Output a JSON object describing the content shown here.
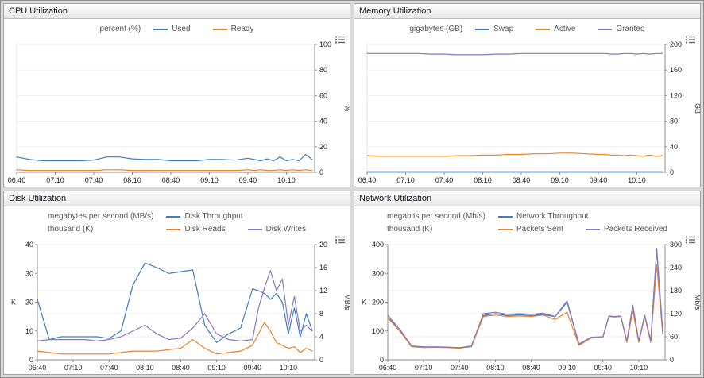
{
  "accent_colors": {
    "blue": "#3f7cc0",
    "orange": "#e8842c",
    "purple": "#8a76c1"
  },
  "chart_data": [
    {
      "type": "line",
      "title": "CPU Utilization",
      "legend": [
        {
          "unit": "percent (%)",
          "entries": [
            {
              "name": "Used",
              "color": "#3f7cc0"
            },
            {
              "name": "Ready",
              "color": "#e8842c"
            }
          ]
        }
      ],
      "x_range": [
        0,
        232
      ],
      "x_tick_minutes": [
        0,
        30,
        60,
        90,
        120,
        150,
        180,
        210
      ],
      "x_tick_labels": [
        "06:40",
        "07:10",
        "07:40",
        "08:10",
        "08:40",
        "09:10",
        "09:40",
        "10:10"
      ],
      "right_axis": {
        "label": "%",
        "min": 0,
        "max": 100,
        "ticks": [
          0,
          20,
          40,
          60,
          80,
          100
        ]
      },
      "left_axis": null,
      "x": [
        0,
        10,
        20,
        30,
        40,
        50,
        60,
        70,
        80,
        90,
        100,
        110,
        120,
        130,
        140,
        150,
        160,
        170,
        180,
        185,
        190,
        195,
        200,
        205,
        210,
        215,
        220,
        225,
        230
      ],
      "series": [
        {
          "name": "Used",
          "color": "#3f7cc0",
          "axis": "right",
          "values": [
            12,
            10,
            9,
            9,
            9,
            9,
            9.5,
            12,
            12,
            10.5,
            10,
            10,
            9,
            9,
            9,
            10,
            10,
            9.5,
            11,
            10,
            9,
            10.5,
            9,
            12,
            9,
            10,
            9,
            14,
            10
          ]
        },
        {
          "name": "Ready",
          "color": "#e8842c",
          "axis": "right",
          "values": [
            2,
            1.5,
            1.5,
            1.5,
            1.5,
            1.5,
            1.5,
            2,
            2,
            1.5,
            1.5,
            1.5,
            1.5,
            1.5,
            1.5,
            1.5,
            1.5,
            1.5,
            2,
            1.5,
            2,
            1.5,
            1.5,
            2,
            1.5,
            2,
            1.5,
            2,
            1.5
          ]
        }
      ]
    },
    {
      "type": "line",
      "title": "Memory Utilization",
      "legend": [
        {
          "unit": "gigabytes (GB)",
          "entries": [
            {
              "name": "Swap",
              "color": "#3f7cc0"
            },
            {
              "name": "Active",
              "color": "#e8842c"
            },
            {
              "name": "Granted",
              "color": "#8a76c1"
            }
          ]
        }
      ],
      "x_range": [
        0,
        232
      ],
      "x_tick_minutes": [
        0,
        30,
        60,
        90,
        120,
        150,
        180,
        210
      ],
      "x_tick_labels": [
        "06:40",
        "07:10",
        "07:40",
        "08:10",
        "08:40",
        "09:10",
        "09:40",
        "10:10"
      ],
      "right_axis": {
        "label": "GB",
        "min": 0,
        "max": 200,
        "ticks": [
          0,
          40,
          80,
          120,
          160,
          200
        ]
      },
      "left_axis": null,
      "x": [
        0,
        10,
        20,
        30,
        40,
        50,
        60,
        70,
        80,
        90,
        100,
        110,
        120,
        130,
        140,
        150,
        160,
        170,
        180,
        185,
        190,
        195,
        200,
        205,
        210,
        215,
        220,
        225,
        230
      ],
      "series": [
        {
          "name": "Swap",
          "color": "#3f7cc0",
          "axis": "right",
          "values": [
            1,
            1,
            1,
            1,
            1,
            1,
            1,
            1,
            1,
            1,
            1,
            1,
            1,
            1,
            1,
            1,
            1,
            1,
            1,
            1,
            1,
            1,
            1,
            1,
            1,
            1,
            1,
            1,
            1
          ]
        },
        {
          "name": "Active",
          "color": "#e8842c",
          "axis": "right",
          "values": [
            26,
            25,
            25,
            25,
            25,
            25,
            25,
            26,
            26,
            27,
            27,
            28,
            28,
            29,
            29,
            30,
            30,
            29,
            28,
            28,
            27,
            27,
            26,
            27,
            26,
            25,
            27,
            25,
            26
          ]
        },
        {
          "name": "Granted",
          "color": "#8a76c1",
          "axis": "right",
          "values": [
            186,
            186,
            186,
            186,
            186,
            185,
            185,
            184,
            184,
            184,
            185,
            185,
            186,
            186,
            186,
            186,
            186,
            186,
            186,
            186,
            185,
            185,
            186,
            186,
            185,
            186,
            185,
            186,
            186
          ]
        }
      ]
    },
    {
      "type": "line",
      "title": "Disk Utilization",
      "legend": [
        {
          "unit": "megabytes per second (MB/s)",
          "entries": [
            {
              "name": "Disk Throughput",
              "color": "#3f7cc0"
            }
          ]
        },
        {
          "unit": "thousand (K)",
          "entries": [
            {
              "name": "Disk Reads",
              "color": "#e8842c"
            },
            {
              "name": "Disk Writes",
              "color": "#8a76c1"
            }
          ]
        }
      ],
      "x_range": [
        0,
        232
      ],
      "x_tick_minutes": [
        0,
        30,
        60,
        90,
        120,
        150,
        180,
        210
      ],
      "x_tick_labels": [
        "06:40",
        "07:10",
        "07:40",
        "08:10",
        "08:40",
        "09:10",
        "09:40",
        "10:10"
      ],
      "right_axis": {
        "label": "MB/s",
        "min": 0,
        "max": 20,
        "ticks": [
          0,
          4,
          8,
          12,
          16,
          20
        ]
      },
      "left_axis": {
        "label": "K",
        "min": 0,
        "max": 40,
        "ticks": [
          0,
          10,
          20,
          30,
          40
        ]
      },
      "x": [
        0,
        10,
        20,
        30,
        40,
        50,
        60,
        70,
        80,
        90,
        100,
        110,
        120,
        130,
        140,
        150,
        160,
        170,
        180,
        185,
        190,
        195,
        200,
        205,
        210,
        215,
        220,
        225,
        230
      ],
      "series": [
        {
          "name": "Disk Throughput",
          "color": "#3f7cc0",
          "axis": "right",
          "values": [
            10.5,
            3.5,
            4,
            4,
            4,
            4,
            3.7,
            5,
            13,
            16.8,
            16,
            15,
            15.3,
            15.6,
            6,
            3,
            4.5,
            5.5,
            12.3,
            12,
            11.5,
            10.5,
            11.5,
            10,
            4.5,
            9,
            4,
            8,
            5
          ]
        },
        {
          "name": "Disk Reads",
          "color": "#e8842c",
          "axis": "left",
          "values": [
            3,
            2.5,
            2,
            2,
            2,
            2,
            2,
            2.5,
            3,
            3,
            3,
            3.5,
            4,
            7,
            4,
            2,
            2.5,
            3,
            5,
            9,
            13,
            10,
            6,
            5,
            4,
            4.5,
            2.5,
            4,
            3
          ]
        },
        {
          "name": "Disk Writes",
          "color": "#8a76c1",
          "axis": "left",
          "values": [
            6.5,
            7,
            7,
            7,
            7,
            6.5,
            7,
            8,
            10,
            12,
            9,
            7,
            7.5,
            11,
            16,
            9,
            7,
            6.5,
            7,
            18,
            25,
            31,
            24,
            28,
            12,
            22,
            10,
            12,
            10
          ]
        }
      ]
    },
    {
      "type": "line",
      "title": "Network Utilization",
      "legend": [
        {
          "unit": "megabits per second (Mb/s)",
          "entries": [
            {
              "name": "Network Throughput",
              "color": "#3f7cc0"
            }
          ]
        },
        {
          "unit": "thousand (K)",
          "entries": [
            {
              "name": "Packets Sent",
              "color": "#e8842c"
            },
            {
              "name": "Packets Received",
              "color": "#8a76c1"
            }
          ]
        }
      ],
      "x_range": [
        0,
        232
      ],
      "x_tick_minutes": [
        0,
        30,
        60,
        90,
        120,
        150,
        180,
        210
      ],
      "x_tick_labels": [
        "06:40",
        "07:10",
        "07:40",
        "08:10",
        "08:40",
        "09:10",
        "09:40",
        "10:10"
      ],
      "right_axis": {
        "label": "Mb/s",
        "min": 0,
        "max": 300,
        "ticks": [
          0,
          60,
          120,
          180,
          240,
          300
        ]
      },
      "left_axis": {
        "label": "K",
        "min": 0,
        "max": 400,
        "ticks": [
          0,
          100,
          200,
          300,
          400
        ]
      },
      "x": [
        0,
        10,
        20,
        30,
        40,
        50,
        60,
        70,
        80,
        90,
        100,
        110,
        120,
        130,
        140,
        150,
        160,
        170,
        180,
        185,
        190,
        195,
        200,
        205,
        210,
        215,
        220,
        225,
        230
      ],
      "series": [
        {
          "name": "Network Throughput",
          "color": "#3f7cc0",
          "axis": "right",
          "values": [
            110,
            80,
            35,
            33,
            33,
            32,
            31,
            35,
            115,
            120,
            115,
            117,
            115,
            118,
            112,
            150,
            40,
            58,
            60,
            113,
            112,
            114,
            48,
            140,
            48,
            115,
            48,
            290,
            75
          ]
        },
        {
          "name": "Packets Sent",
          "color": "#e8842c",
          "axis": "left",
          "values": [
            145,
            100,
            45,
            42,
            43,
            42,
            40,
            45,
            150,
            155,
            150,
            152,
            150,
            155,
            140,
            165,
            50,
            75,
            78,
            150,
            148,
            150,
            60,
            170,
            60,
            150,
            60,
            330,
            90
          ]
        },
        {
          "name": "Packets Received",
          "color": "#8a76c1",
          "axis": "left",
          "values": [
            155,
            105,
            48,
            45,
            45,
            44,
            42,
            48,
            160,
            165,
            158,
            160,
            158,
            162,
            150,
            205,
            55,
            78,
            80,
            152,
            150,
            152,
            65,
            190,
            65,
            155,
            65,
            380,
            100
          ]
        }
      ]
    }
  ]
}
